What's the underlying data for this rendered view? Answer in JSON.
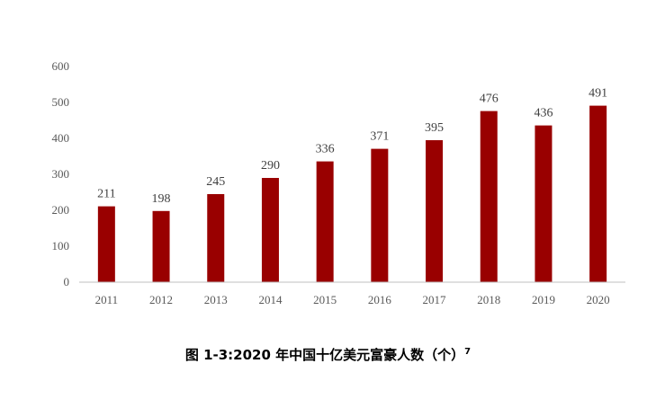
{
  "caption": {
    "text": "图 1-3:2020 年中国十亿美元富豪人数（个）",
    "footnote": "7"
  },
  "chart_data": {
    "type": "bar",
    "categories": [
      "2011",
      "2012",
      "2013",
      "2014",
      "2015",
      "2016",
      "2017",
      "2018",
      "2019",
      "2020"
    ],
    "values": [
      211,
      198,
      245,
      290,
      336,
      371,
      395,
      476,
      436,
      491
    ],
    "data_labels": [
      "211",
      "198",
      "245",
      "290",
      "336",
      "371",
      "395",
      "476",
      "436",
      "491"
    ],
    "title": "",
    "xlabel": "",
    "ylabel": "",
    "ylim": [
      0,
      600
    ],
    "yticks": [
      0,
      100,
      200,
      300,
      400,
      500,
      600
    ],
    "ytick_labels": [
      "0",
      "100",
      "200",
      "300",
      "400",
      "500",
      "600"
    ],
    "grid": false,
    "legend": "none",
    "bar_color": "#990000",
    "axis_color": "#bfbfbf"
  }
}
